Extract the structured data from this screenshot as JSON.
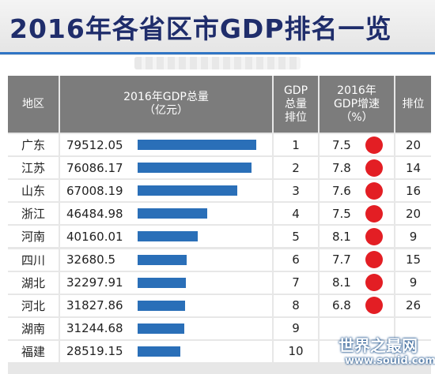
{
  "title": "2016年各省区市GDP排名一览",
  "colors": {
    "title": "#1f2d6b",
    "header_bg": "#7c7c7c",
    "bar": "#2a6fb8",
    "dot": "#e31e24",
    "grid": "#e7e7e7"
  },
  "chart_data": {
    "type": "table",
    "title": "2016年各省区市GDP排名一览",
    "columns": [
      "地区",
      "2016年GDP总量\n（亿元）",
      "GDP\n总量\n排位",
      "2016年\nGDP增速\n（%）",
      "排位"
    ],
    "bar_column": "gdp",
    "dot_column": "growth",
    "rows": [
      {
        "region": "广东",
        "gdp": "79512.05",
        "gdp_value": 79512.05,
        "gdp_rank": "1",
        "growth": "7.5",
        "growth_rank": "20"
      },
      {
        "region": "江苏",
        "gdp": "76086.17",
        "gdp_value": 76086.17,
        "gdp_rank": "2",
        "growth": "7.8",
        "growth_rank": "14"
      },
      {
        "region": "山东",
        "gdp": "67008.19",
        "gdp_value": 67008.19,
        "gdp_rank": "3",
        "growth": "7.6",
        "growth_rank": "16"
      },
      {
        "region": "浙江",
        "gdp": "46484.98",
        "gdp_value": 46484.98,
        "gdp_rank": "4",
        "growth": "7.5",
        "growth_rank": "20"
      },
      {
        "region": "河南",
        "gdp": "40160.01",
        "gdp_value": 40160.01,
        "gdp_rank": "5",
        "growth": "8.1",
        "growth_rank": "9"
      },
      {
        "region": "四川",
        "gdp": "32680.5",
        "gdp_value": 32680.5,
        "gdp_rank": "6",
        "growth": "7.7",
        "growth_rank": "15"
      },
      {
        "region": "湖北",
        "gdp": "32297.91",
        "gdp_value": 32297.91,
        "gdp_rank": "7",
        "growth": "8.1",
        "growth_rank": "9"
      },
      {
        "region": "河北",
        "gdp": "31827.86",
        "gdp_value": 31827.86,
        "gdp_rank": "8",
        "growth": "6.8",
        "growth_rank": "26"
      },
      {
        "region": "湖南",
        "gdp": "31244.68",
        "gdp_value": 31244.68,
        "gdp_rank": "9",
        "growth": "",
        "growth_rank": ""
      },
      {
        "region": "福建",
        "gdp": "28519.15",
        "gdp_value": 28519.15,
        "gdp_rank": "10",
        "growth": "",
        "growth_rank": ""
      }
    ]
  },
  "watermark": {
    "name": "世界之最网",
    "url": "www.souid.com"
  }
}
